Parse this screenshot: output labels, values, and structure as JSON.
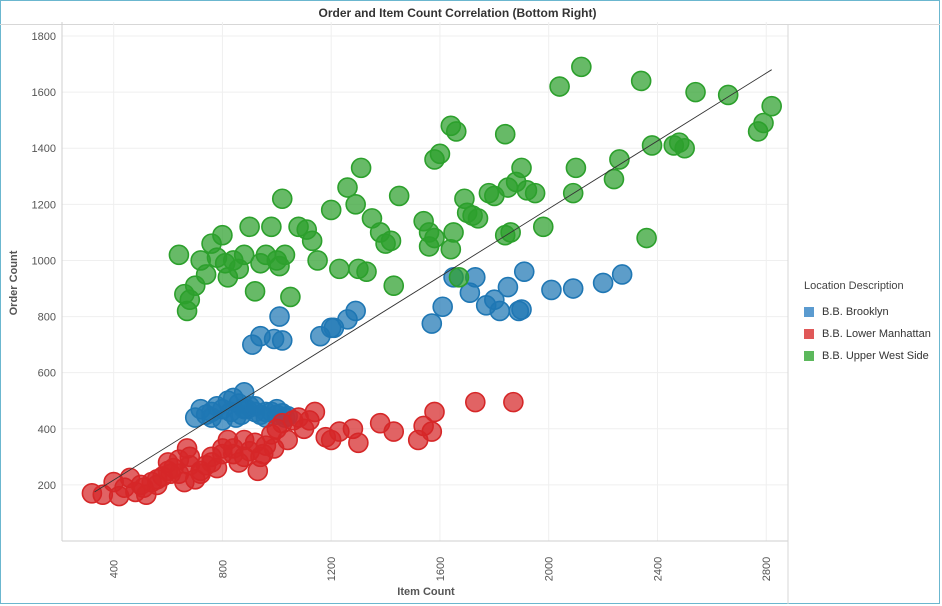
{
  "title": "Order and Item Count Correlation (Bottom Right)",
  "legend": {
    "title": "Location Description",
    "items": [
      {
        "label": "B.B. Brooklyn",
        "color": "#1f77b4"
      },
      {
        "label": "B.B. Lower Manhattan",
        "color": "#d62728"
      },
      {
        "label": "B.B. Upper West Side",
        "color": "#2ca02c"
      }
    ]
  },
  "chart_data": {
    "type": "scatter",
    "title": "Order and Item Count Correlation (Bottom Right)",
    "xlabel": "Item Count",
    "ylabel": "Order Count",
    "xlim": [
      210,
      2880
    ],
    "ylim": [
      0,
      1850
    ],
    "x_ticks": [
      400,
      800,
      1200,
      1600,
      2000,
      2400,
      2800
    ],
    "y_ticks": [
      200,
      400,
      600,
      800,
      1000,
      1200,
      1400,
      1600,
      1800
    ],
    "grid": true,
    "legend_position": "right",
    "trend_line": {
      "x": [
        330,
        2820
      ],
      "y": [
        175,
        1680
      ]
    },
    "series": [
      {
        "name": "B.B. Brooklyn",
        "color": "#1f77b4",
        "x": [
          700,
          720,
          740,
          760,
          780,
          800,
          820,
          840,
          860,
          880,
          830,
          850,
          870,
          890,
          900,
          920,
          940,
          960,
          980,
          1000,
          1020,
          1040,
          800,
          760,
          880,
          920,
          960,
          1000,
          1030,
          910,
          940,
          990,
          1020,
          1010,
          1160,
          1200,
          1210,
          1260,
          1290,
          1570,
          1610,
          1650,
          1710,
          1730,
          1770,
          1800,
          1820,
          1850,
          1890,
          1900,
          1910,
          2010,
          2090,
          2200,
          2270
        ],
        "y": [
          440,
          470,
          450,
          460,
          480,
          470,
          500,
          510,
          490,
          530,
          460,
          440,
          450,
          470,
          480,
          460,
          450,
          440,
          460,
          450,
          455,
          445,
          430,
          440,
          470,
          480,
          460,
          470,
          440,
          700,
          730,
          720,
          715,
          800,
          730,
          760,
          760,
          790,
          820,
          775,
          835,
          940,
          885,
          940,
          840,
          860,
          820,
          905,
          820,
          825,
          960,
          895,
          900,
          920,
          950
        ]
      },
      {
        "name": "B.B. Lower Manhattan",
        "color": "#d62728",
        "x": [
          320,
          360,
          400,
          420,
          440,
          460,
          480,
          500,
          510,
          520,
          540,
          560,
          580,
          600,
          610,
          620,
          640,
          660,
          670,
          680,
          700,
          720,
          740,
          760,
          780,
          800,
          820,
          840,
          860,
          880,
          900,
          920,
          940,
          960,
          980,
          1000,
          1020,
          1040,
          1060,
          1080,
          1100,
          1120,
          1140,
          1180,
          1200,
          1230,
          1280,
          1300,
          1380,
          1430,
          1520,
          1540,
          1570,
          1580,
          1730,
          1870,
          560,
          600,
          640,
          680,
          720,
          760,
          800,
          840,
          880,
          930,
          950,
          990
        ],
        "y": [
          170,
          165,
          210,
          160,
          190,
          225,
          175,
          200,
          190,
          165,
          210,
          200,
          230,
          280,
          240,
          260,
          240,
          210,
          330,
          300,
          220,
          250,
          270,
          300,
          260,
          310,
          360,
          330,
          280,
          300,
          320,
          350,
          300,
          340,
          380,
          400,
          420,
          360,
          430,
          440,
          400,
          430,
          460,
          370,
          360,
          390,
          400,
          350,
          420,
          390,
          360,
          410,
          390,
          460,
          495,
          495,
          220,
          250,
          290,
          270,
          240,
          280,
          330,
          310,
          360,
          250,
          310,
          330
        ]
      },
      {
        "name": "B.B. Upper West Side",
        "color": "#2ca02c",
        "x": [
          640,
          660,
          670,
          680,
          700,
          720,
          740,
          760,
          780,
          800,
          810,
          820,
          840,
          860,
          880,
          900,
          920,
          940,
          960,
          980,
          1000,
          1010,
          1020,
          1030,
          1050,
          1080,
          1110,
          1130,
          1150,
          1200,
          1230,
          1260,
          1290,
          1300,
          1310,
          1330,
          1350,
          1380,
          1400,
          1420,
          1430,
          1450,
          1540,
          1560,
          1580,
          1600,
          1640,
          1660,
          1670,
          1690,
          1700,
          1720,
          1740,
          1780,
          1800,
          1840,
          1850,
          1860,
          1880,
          1900,
          1920,
          1950,
          1980,
          2040,
          2090,
          2100,
          2120,
          2240,
          2260,
          2340,
          2360,
          2380,
          2460,
          2480,
          2500,
          2540,
          2660,
          2770,
          2790,
          2820,
          1560,
          1580,
          1640,
          1650,
          1840
        ],
        "y": [
          1020,
          880,
          820,
          860,
          910,
          1000,
          950,
          1060,
          1010,
          1090,
          990,
          940,
          1000,
          970,
          1020,
          1120,
          890,
          990,
          1020,
          1120,
          1000,
          980,
          1220,
          1020,
          870,
          1120,
          1110,
          1070,
          1000,
          1180,
          970,
          1260,
          1200,
          970,
          1330,
          960,
          1150,
          1100,
          1060,
          1070,
          910,
          1230,
          1140,
          1100,
          1360,
          1380,
          1480,
          1460,
          940,
          1220,
          1170,
          1160,
          1150,
          1240,
          1230,
          1450,
          1260,
          1100,
          1280,
          1330,
          1250,
          1240,
          1120,
          1620,
          1240,
          1330,
          1690,
          1290,
          1360,
          1640,
          1080,
          1410,
          1410,
          1420,
          1400,
          1600,
          1590,
          1460,
          1490,
          1550,
          1050,
          1080,
          1040,
          1100,
          1090
        ]
      }
    ]
  }
}
